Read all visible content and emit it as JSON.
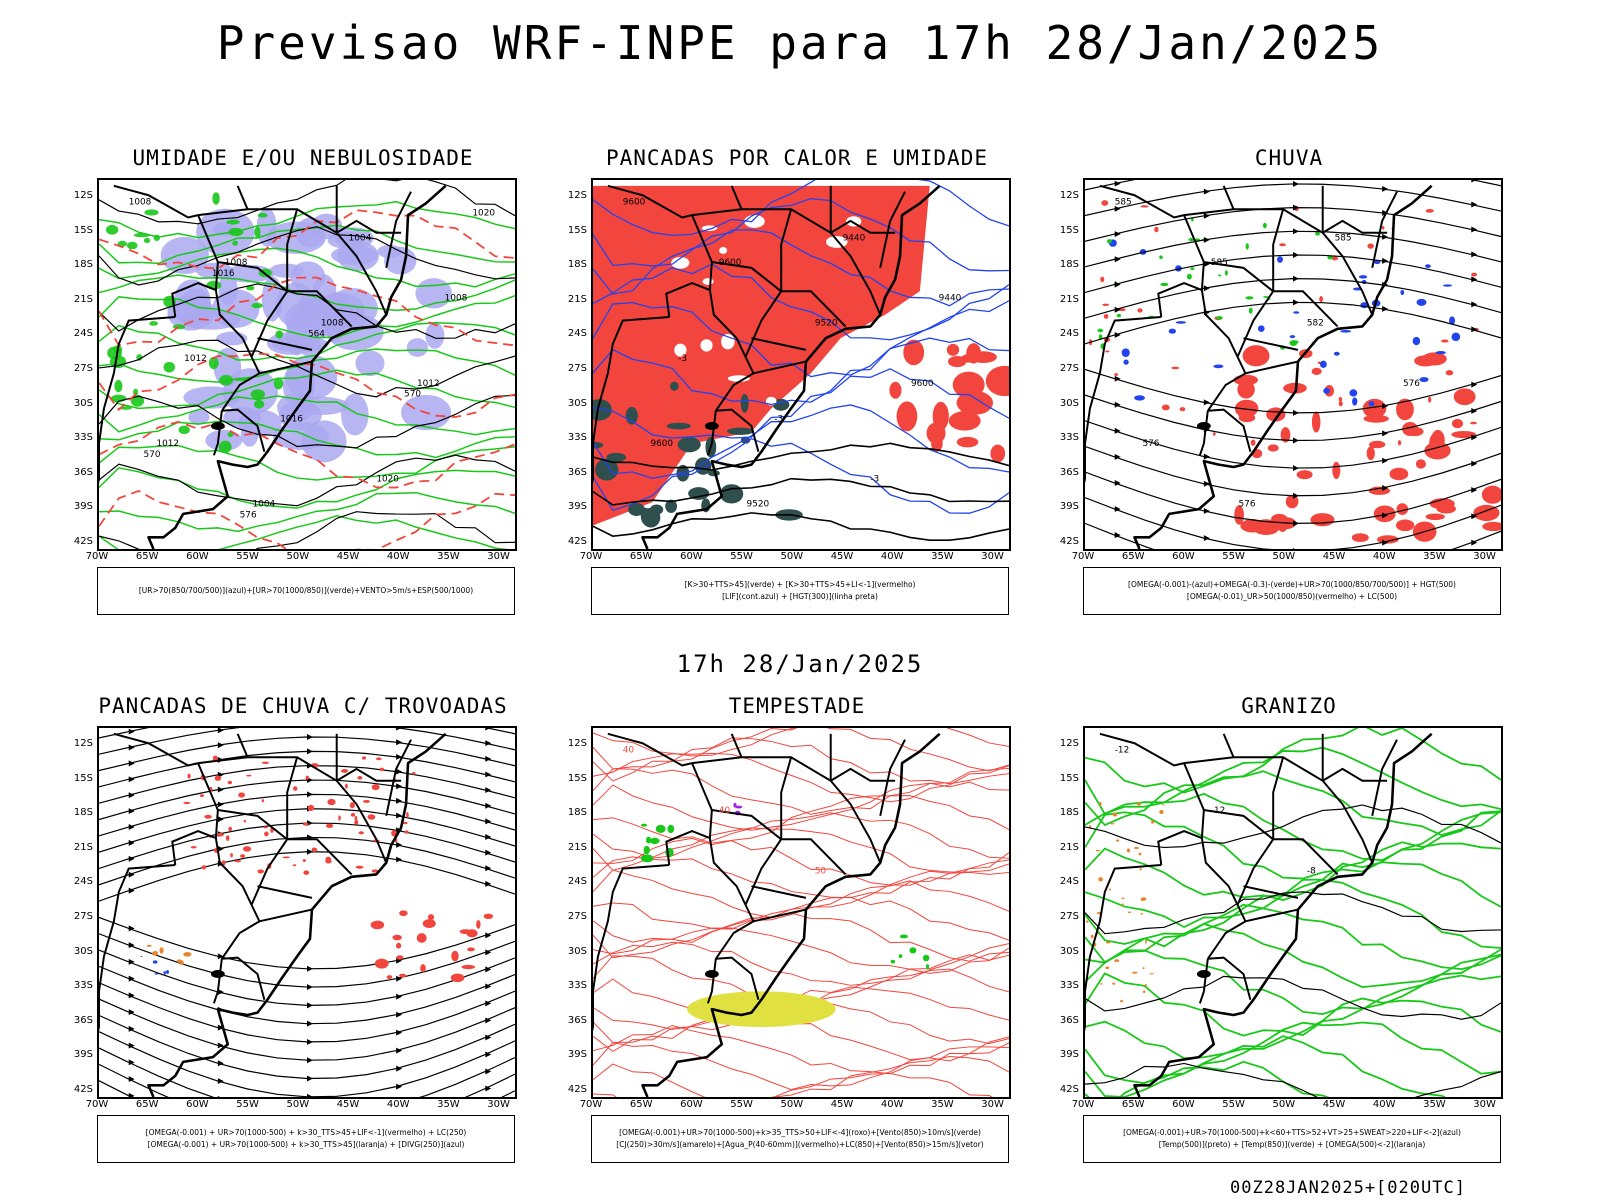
{
  "main_title": "Previsao WRF-INPE  para 17h 28/Jan/2025",
  "mid_date": "17h 28/Jan/2025",
  "footer": "00Z28JAN2025+[020UTC]",
  "lat_labels": [
    "12S",
    "15S",
    "18S",
    "21S",
    "24S",
    "27S",
    "30S",
    "33S",
    "36S",
    "39S",
    "42S"
  ],
  "lon_labels": [
    "70W",
    "65W",
    "60W",
    "55W",
    "50W",
    "45W",
    "40W",
    "35W",
    "30W"
  ],
  "colors": {
    "red": "#f2453d",
    "green": "#18c818",
    "blue": "#2244ee",
    "lavender": "#aaa8f0",
    "darkteal": "#2f4f4f",
    "yellow": "#e0e040",
    "orange": "#e8852a",
    "purple": "#a020f0"
  },
  "panels": [
    {
      "title": "UMIDADE E/OU NEBULOSIDADE",
      "legend": [
        "[UR>70(850/700/500)](azul)+[UR>70(1000/850)](verde)+VENTO>5m/s+ESP(500/1000)"
      ],
      "contour_labels": [
        "1008",
        "1008",
        "1008",
        "1012",
        "1012",
        "1004",
        "1004",
        "1008",
        "1012",
        "1016",
        "1020",
        "1020",
        "1016",
        "564",
        "570",
        "570",
        "576"
      ]
    },
    {
      "title": "PANCADAS POR CALOR E UMIDADE",
      "legend": [
        "[K>30+TTS>45](verde) + [K>30+TTS>45+LI<-1](vermelho)",
        "[LIF](cont.azul) + [HGT(300)](linha preta)"
      ],
      "contour_labels": [
        "9600",
        "9600",
        "9520",
        "9600",
        "9600",
        "9520",
        "9440",
        "9440",
        "-3",
        "-3",
        "-3"
      ]
    },
    {
      "title": "CHUVA",
      "legend": [
        "[OMEGA(-0.001)-(azul)+OMEGA(-0.3)-(verde)+UR>70(1000/850/700/500)] + HGT(500)",
        "[OMEGA(-0.01)_UR>50(1000/850)(vermelho) + LC(500)"
      ],
      "contour_labels": [
        "585",
        "585",
        "582",
        "576",
        "576",
        "576",
        "585"
      ]
    },
    {
      "title": "PANCADAS DE CHUVA C/ TROVOADAS",
      "legend": [
        "[OMEGA(-0.001) + UR>70(1000-500) + k>30_TTS>45+LIF<-1](vermelho) + LC(250)",
        "[OMEGA(-0.001) + UR>70(1000-500) + k>30_TTS>45](laranja) + [DIVG(250)](azul)"
      ],
      "contour_labels": []
    },
    {
      "title": "TEMPESTADE",
      "legend": [
        "[OMEGA(-0.001)+UR>70(1000-500)+k>35_TTS>50+LIF<-4](roxo)+[Vento(850)>10m/s](verde)",
        "[CJ(250)>30m/s](amarelo)+[Agua_P(40-60mm)](vermelho)+LC(850)+[Vento(850)>15m/s](vetor)"
      ],
      "contour_labels": [
        "40",
        "40",
        "50"
      ]
    },
    {
      "title": "GRANIZO",
      "legend": [
        "[OMEGA(-0.001)+UR>70(1000-500)+k<60+TTS>52+VT>25+SWEAT>220+LIF<-2](azul)",
        "[Temp(500)](preto) + [Temp(850)](verde) + [OMEGA(500)<-2](laranja)"
      ],
      "contour_labels": [
        "-12",
        "-12",
        "-8"
      ]
    }
  ]
}
